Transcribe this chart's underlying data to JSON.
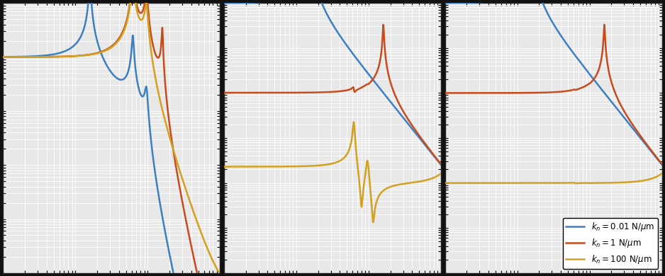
{
  "colors": {
    "blue": "#3d7fc1",
    "orange": "#c94b1c",
    "yellow": "#d4a020"
  },
  "fig_facecolor": "#111111",
  "ax_facecolor": "#e8e8e8",
  "grid_color": "#ffffff",
  "spine_color": "#222222",
  "line_width": 1.8,
  "freq_min": 1,
  "freq_max": 1000,
  "kn_values_N_per_um": [
    0.01,
    1.0,
    100.0
  ],
  "legend_labels": [
    "$k_n = 0.01\\ \\mathrm{N}/\\mu\\mathrm{m}$",
    "$k_n = 1\\ \\mathrm{N}/\\mu\\mathrm{m}$",
    "$k_n = 100\\ \\mathrm{N}/\\mu\\mathrm{m}$"
  ]
}
